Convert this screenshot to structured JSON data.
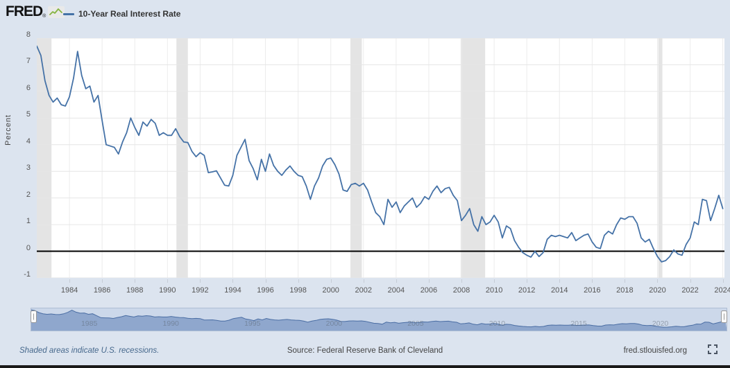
{
  "header": {
    "logo_text": "FRED",
    "logo_reg": "®",
    "legend": {
      "series_label": "10-Year Real Interest Rate"
    }
  },
  "footer": {
    "recession_note": "Shaded areas indicate U.S. recessions.",
    "source": "Source: Federal Reserve Bank of Cleveland",
    "site": "fred.stlouisfed.org"
  },
  "chart_data": {
    "type": "line",
    "title": "10-Year Real Interest Rate",
    "ylabel": "Percent",
    "ylim": [
      -1,
      8
    ],
    "xlim": [
      1982.0,
      2024.1
    ],
    "y_ticks": [
      8,
      7,
      6,
      5,
      4,
      3,
      2,
      1,
      0,
      -1
    ],
    "x_ticks": [
      1984,
      1986,
      1988,
      1990,
      1992,
      1994,
      1996,
      1998,
      2000,
      2002,
      2004,
      2006,
      2008,
      2010,
      2012,
      2014,
      2016,
      2018,
      2020,
      2022,
      2024
    ],
    "grid": true,
    "zero_line": 0,
    "legend_position": "top-left",
    "colors": {
      "line": "#4572a7",
      "grid": "#e6e6e6",
      "recession_band": "#e4e4e4",
      "zero_line": "#000000",
      "plot_bg": "#ffffff",
      "page_bg": "#dce4ef",
      "nav_track": "#ccd8ea",
      "nav_fill": "#8fa7cd",
      "nav_line": "#4a6da3",
      "nav_border": "#aebdd4"
    },
    "recession_bands": [
      [
        1982.0,
        1982.9
      ],
      [
        1990.55,
        1991.25
      ],
      [
        2001.2,
        2001.9
      ],
      [
        2007.95,
        2009.45
      ],
      [
        2020.05,
        2020.3
      ]
    ],
    "series": {
      "name": "10-Year Real Interest Rate",
      "units": "Percent",
      "x_start": 1982.0,
      "x_step": 0.25,
      "values": [
        7.7,
        7.35,
        6.4,
        5.85,
        5.6,
        5.75,
        5.5,
        5.45,
        5.8,
        6.5,
        7.5,
        6.6,
        6.1,
        6.2,
        5.6,
        5.85,
        4.9,
        4.0,
        3.95,
        3.9,
        3.65,
        4.1,
        4.45,
        5.0,
        4.65,
        4.35,
        4.85,
        4.7,
        4.95,
        4.8,
        4.35,
        4.45,
        4.35,
        4.35,
        4.6,
        4.3,
        4.1,
        4.08,
        3.75,
        3.55,
        3.7,
        3.6,
        2.95,
        2.98,
        3.02,
        2.75,
        2.48,
        2.45,
        2.85,
        3.6,
        3.9,
        4.2,
        3.4,
        3.1,
        2.68,
        3.45,
        3.0,
        3.65,
        3.22,
        3.0,
        2.85,
        3.05,
        3.2,
        3.0,
        2.85,
        2.8,
        2.45,
        1.95,
        2.45,
        2.75,
        3.2,
        3.45,
        3.5,
        3.25,
        2.9,
        2.3,
        2.25,
        2.5,
        2.55,
        2.45,
        2.55,
        2.3,
        1.85,
        1.45,
        1.3,
        1.0,
        1.95,
        1.65,
        1.85,
        1.45,
        1.7,
        1.85,
        2.0,
        1.65,
        1.8,
        2.05,
        1.95,
        2.25,
        2.45,
        2.2,
        2.35,
        2.4,
        2.1,
        1.9,
        1.15,
        1.35,
        1.6,
        1.0,
        0.75,
        1.3,
        1.0,
        1.1,
        1.35,
        1.1,
        0.5,
        0.95,
        0.85,
        0.4,
        0.15,
        -0.05,
        -0.15,
        -0.22,
        0.0,
        -0.2,
        -0.05,
        0.45,
        0.6,
        0.55,
        0.6,
        0.55,
        0.5,
        0.7,
        0.4,
        0.5,
        0.6,
        0.65,
        0.35,
        0.15,
        0.1,
        0.6,
        0.75,
        0.65,
        1.0,
        1.25,
        1.2,
        1.3,
        1.3,
        1.05,
        0.5,
        0.35,
        0.45,
        0.1,
        -0.2,
        -0.4,
        -0.35,
        -0.2,
        0.05,
        -0.1,
        -0.15,
        0.25,
        0.5,
        1.1,
        1.0,
        1.95,
        1.9,
        1.15,
        1.6,
        2.1,
        1.6
      ]
    },
    "navigator_labels": [
      1985,
      1990,
      1995,
      2000,
      2005,
      2010,
      2015,
      2020
    ]
  }
}
